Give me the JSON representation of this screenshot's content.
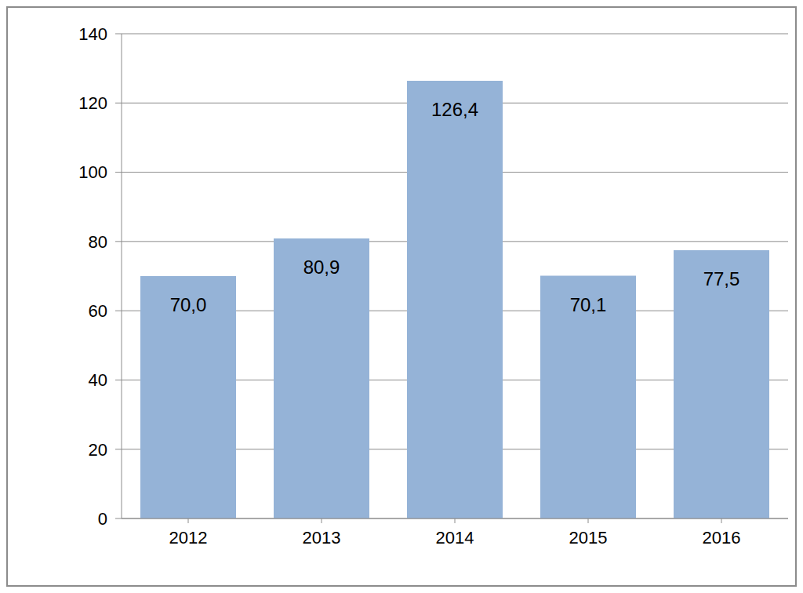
{
  "chart_data": {
    "type": "bar",
    "categories": [
      "2012",
      "2013",
      "2014",
      "2015",
      "2016"
    ],
    "values": [
      70.0,
      80.9,
      126.4,
      70.1,
      77.5
    ],
    "value_labels": [
      "70,0",
      "80,9",
      "126,4",
      "70,1",
      "77,5"
    ],
    "color": "#95b3d7",
    "ylim": [
      0,
      140
    ],
    "yticks": [
      0,
      20,
      40,
      60,
      80,
      100,
      120,
      140
    ],
    "grid": true,
    "data_labels": true
  }
}
